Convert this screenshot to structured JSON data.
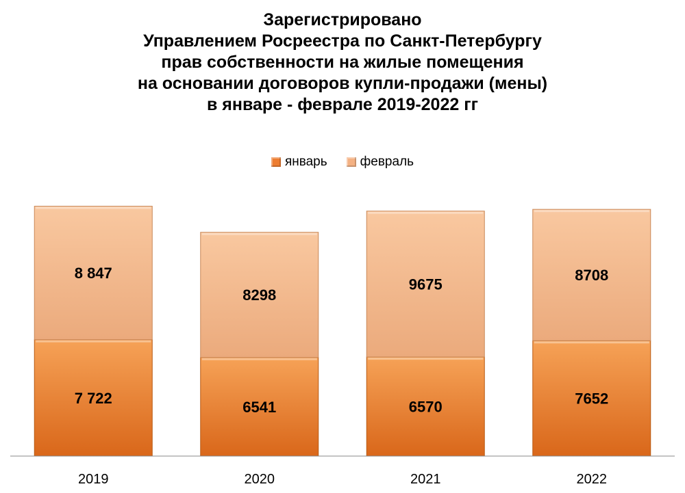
{
  "chart_data": {
    "type": "bar",
    "stacked": true,
    "title_lines": [
      "Зарегистрировано",
      "Управлением Росреестра по Санкт-Петербургу",
      "прав собственности на жилые помещения",
      "на основании договоров купли-продажи (мены)",
      "в январе - феврале 2019-2022 гг"
    ],
    "categories": [
      "2019",
      "2020",
      "2021",
      "2022"
    ],
    "series": [
      {
        "name": "январь",
        "values": [
          7722,
          6541,
          6570,
          7652
        ],
        "labels": [
          "7 722",
          "6541",
          "6570",
          "7652"
        ],
        "color": "#ED7D31"
      },
      {
        "name": "февраль",
        "values": [
          8847,
          8298,
          9675,
          8708
        ],
        "labels": [
          "8 847",
          "8298",
          "9675",
          "8708"
        ],
        "color": "#F4B183"
      }
    ],
    "legend_position": "top",
    "ylim": [
      0,
      18000
    ],
    "grid": false,
    "xlabel": "",
    "ylabel": ""
  }
}
